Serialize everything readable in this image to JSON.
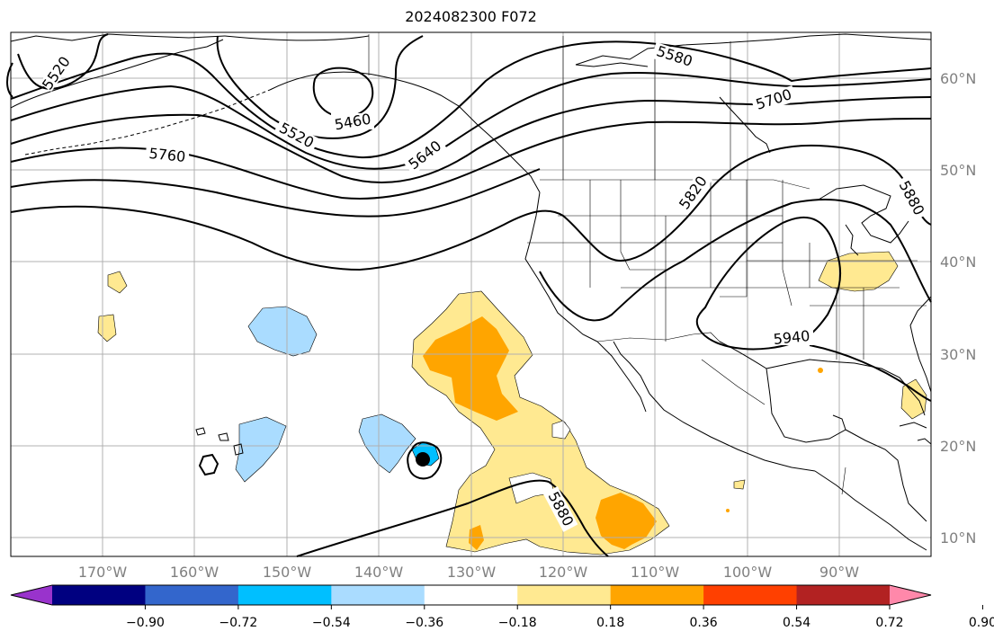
{
  "title": "2024082300 F072",
  "longitude_labels": [
    "170°W",
    "160°W",
    "150°W",
    "140°W",
    "130°W",
    "120°W",
    "110°W",
    "100°W",
    "90°W"
  ],
  "latitude_labels": [
    "60°N",
    "50°N",
    "40°N",
    "30°N",
    "20°N",
    "10°N"
  ],
  "contour_labels": [
    "5520",
    "5460",
    "5520",
    "5640",
    "5580",
    "5700",
    "5760",
    "5820",
    "5880",
    "5940",
    "5880"
  ],
  "colorbar": {
    "colors": [
      "#9933cc",
      "#000080",
      "#3366cc",
      "#00bfff",
      "#aadcff",
      "#ffffff",
      "#ffe991",
      "#ffa500",
      "#ff4000",
      "#b22222",
      "#ff88aa"
    ],
    "tick_labels": [
      "−0.90",
      "−0.72",
      "−0.54",
      "−0.36",
      "−0.18",
      "0.18",
      "0.36",
      "0.54",
      "0.72",
      "0.90"
    ]
  },
  "colors": {
    "positive_light": "#ffe991",
    "positive_medium": "#ffa500",
    "negative_light": "#aadcff",
    "negative_medium": "#00bfff",
    "gridline": "#b0b0b0"
  }
}
